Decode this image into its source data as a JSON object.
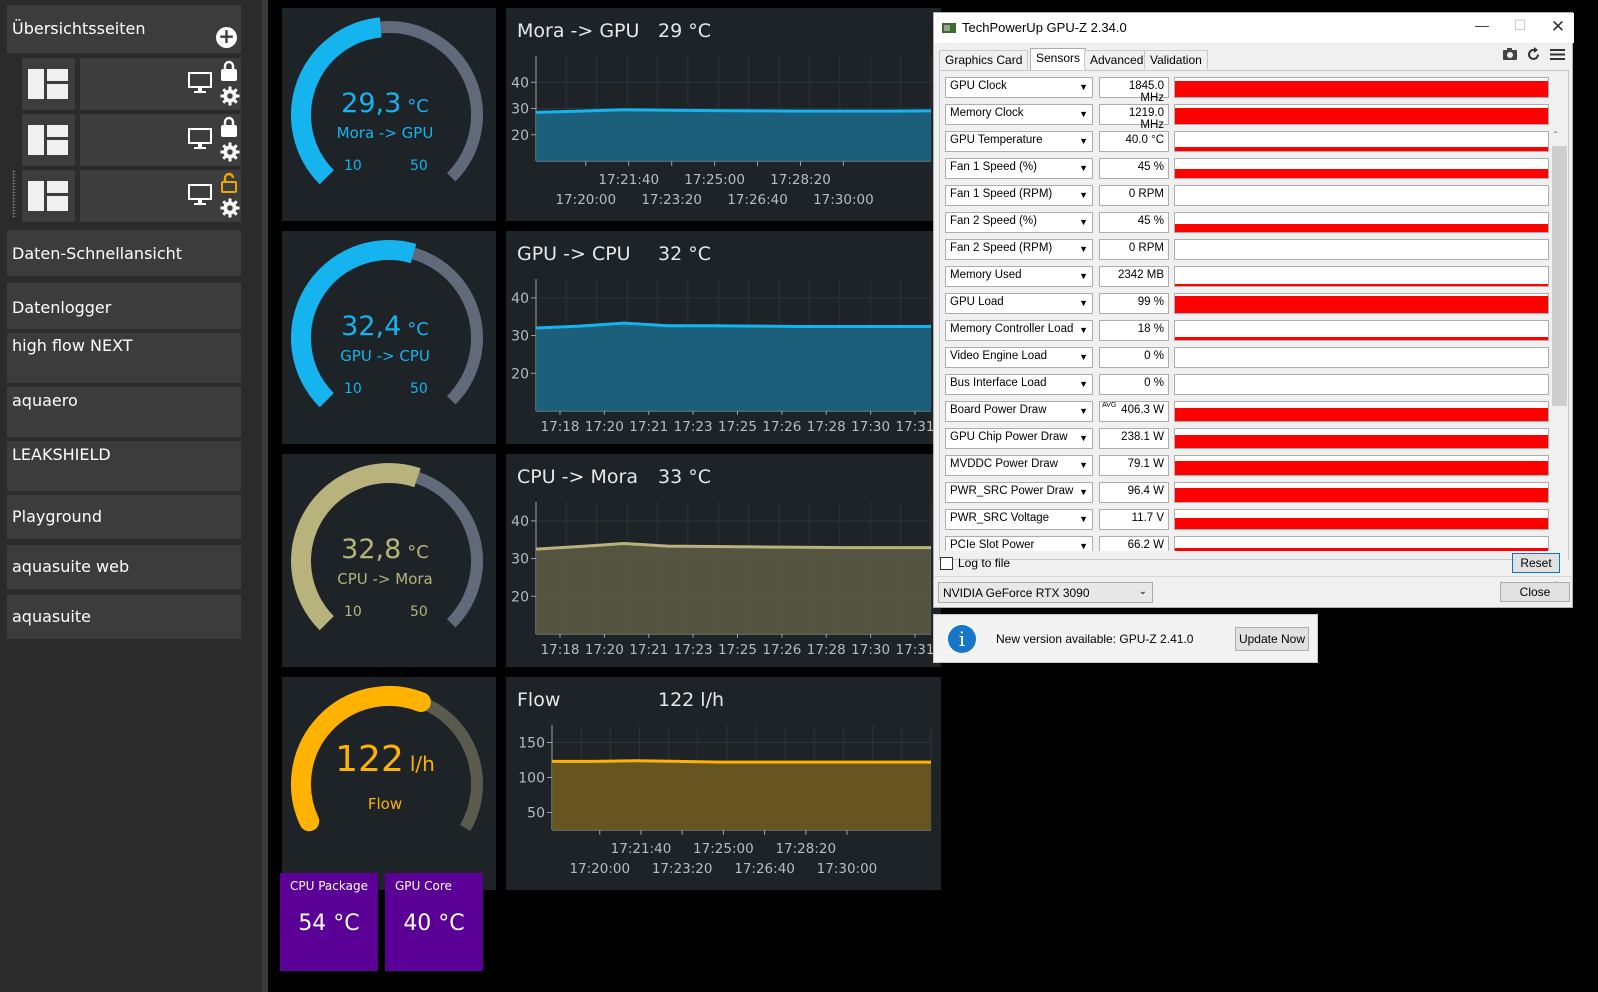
{
  "sidebar": {
    "header": "Übersichtsseiten",
    "items": [
      {
        "label": "Daten-Schnellansicht"
      },
      {
        "label": "Datenlogger"
      },
      {
        "label": "high flow NEXT"
      },
      {
        "label": "aquaero"
      },
      {
        "label": "LEAKSHIELD"
      },
      {
        "label": "Playground"
      },
      {
        "label": "aquasuite web"
      },
      {
        "label": "aquasuite"
      }
    ]
  },
  "gauges": [
    {
      "value": "29,3",
      "unit": "°C",
      "label": "Mora -> GPU",
      "min": "10",
      "max": "50",
      "level": 0.48,
      "color": "#16b4ee"
    },
    {
      "value": "32,4",
      "unit": "°C",
      "label": "GPU -> CPU",
      "min": "10",
      "max": "50",
      "level": 0.56,
      "color": "#16b4ee"
    },
    {
      "value": "32,8",
      "unit": "°C",
      "label": "CPU -> Mora",
      "min": "10",
      "max": "50",
      "level": 0.57,
      "color": "#b8b27c"
    },
    {
      "value": "122",
      "unit": "l/h",
      "label": "Flow",
      "level": 0.58,
      "color": "#ffb300"
    }
  ],
  "charts": [
    {
      "title": "Mora -> GPU",
      "current": "29 °C",
      "color": "#16b4ee",
      "chart_data": {
        "type": "area",
        "yticks": [
          "40",
          "30",
          "20"
        ],
        "ylim": [
          10,
          50
        ],
        "xticks_top": [
          "17:21:40",
          "17:25:00",
          "17:28:20"
        ],
        "xticks_bottom": [
          "17:20:00",
          "17:23:20",
          "17:26:40",
          "17:30:00"
        ],
        "values": [
          28.5,
          29.0,
          29.5,
          29.3,
          29.2,
          29.1,
          29.0,
          29.0,
          29.0,
          29.1
        ]
      }
    },
    {
      "title": "GPU -> CPU",
      "current": "32 °C",
      "color": "#16b4ee",
      "chart_data": {
        "type": "area",
        "yticks": [
          "40",
          "30",
          "20"
        ],
        "ylim": [
          10,
          45
        ],
        "xticks": [
          "17:18",
          "17:20",
          "17:21",
          "17:23",
          "17:25",
          "17:26",
          "17:28",
          "17:30",
          "17:31"
        ],
        "values": [
          32.0,
          32.5,
          33.3,
          32.6,
          32.6,
          32.5,
          32.4,
          32.4,
          32.4,
          32.4
        ]
      }
    },
    {
      "title": "CPU -> Mora",
      "current": "33 °C",
      "color": "#b8b27c",
      "chart_data": {
        "type": "area",
        "yticks": [
          "40",
          "30",
          "20"
        ],
        "ylim": [
          10,
          45
        ],
        "xticks": [
          "17:18",
          "17:20",
          "17:21",
          "17:23",
          "17:25",
          "17:26",
          "17:28",
          "17:30",
          "17:31"
        ],
        "values": [
          32.5,
          33.2,
          34.0,
          33.3,
          33.2,
          33.1,
          33.0,
          32.9,
          32.9,
          32.9
        ]
      }
    },
    {
      "title": "Flow",
      "current": "122 l/h",
      "color": "#ffb300",
      "chart_data": {
        "type": "area",
        "yticks": [
          "150",
          "100",
          "50"
        ],
        "ylim": [
          25,
          175
        ],
        "xticks_top": [
          "17:21:40",
          "17:25:00",
          "17:28:20"
        ],
        "xticks_bottom": [
          "17:20:00",
          "17:23:20",
          "17:26:40",
          "17:30:00"
        ],
        "values": [
          123,
          123,
          124,
          123,
          122,
          122,
          122,
          122,
          122,
          122
        ]
      }
    }
  ],
  "tiles": [
    {
      "title": "CPU Package",
      "value": "54 °C"
    },
    {
      "title": "GPU Core",
      "value": "40 °C"
    }
  ],
  "gpuz": {
    "title": "TechPowerUp GPU-Z 2.34.0",
    "tabs": [
      "Graphics Card",
      "Sensors",
      "Advanced",
      "Validation"
    ],
    "selected_tab": "Sensors",
    "sensors": [
      {
        "name": "GPU Clock",
        "value": "1845.0 MHz",
        "level": 0.85
      },
      {
        "name": "Memory Clock",
        "value": "1219.0 MHz",
        "level": 0.85
      },
      {
        "name": "GPU Temperature",
        "value": "40.0 °C",
        "level": 0.2
      },
      {
        "name": "Fan 1 Speed (%)",
        "value": "45 %",
        "level": 0.45
      },
      {
        "name": "Fan 1 Speed (RPM)",
        "value": "0 RPM",
        "level": 0
      },
      {
        "name": "Fan 2 Speed (%)",
        "value": "45 %",
        "level": 0.4
      },
      {
        "name": "Fan 2 Speed (RPM)",
        "value": "0 RPM",
        "level": 0
      },
      {
        "name": "Memory Used",
        "value": "2342 MB",
        "level": 0.12
      },
      {
        "name": "GPU Load",
        "value": "99 %",
        "level": 0.9
      },
      {
        "name": "Memory Controller Load",
        "value": "18 %",
        "level": 0.18
      },
      {
        "name": "Video Engine Load",
        "value": "0 %",
        "level": 0
      },
      {
        "name": "Bus Interface Load",
        "value": "0 %",
        "level": 0
      },
      {
        "name": "Board Power Draw",
        "value": "406.3 W",
        "avg": "AVG",
        "level": 0.7
      },
      {
        "name": "GPU Chip Power Draw",
        "value": "238.1 W",
        "level": 0.7
      },
      {
        "name": "MVDDC Power Draw",
        "value": "79.1 W",
        "level": 0.75
      },
      {
        "name": "PWR_SRC Power Draw",
        "value": "96.4 W",
        "level": 0.75
      },
      {
        "name": "PWR_SRC Voltage",
        "value": "11.7 V",
        "level": 0.6
      },
      {
        "name": "PCIe Slot Power",
        "value": "66.2 W",
        "level": 0.4
      }
    ],
    "log_to_file": "Log to file",
    "reset": "Reset",
    "gpu_name": "NVIDIA GeForce RTX 3090",
    "close": "Close"
  },
  "notification": {
    "message": "New version available: GPU-Z 2.41.0",
    "button": "Update Now"
  }
}
